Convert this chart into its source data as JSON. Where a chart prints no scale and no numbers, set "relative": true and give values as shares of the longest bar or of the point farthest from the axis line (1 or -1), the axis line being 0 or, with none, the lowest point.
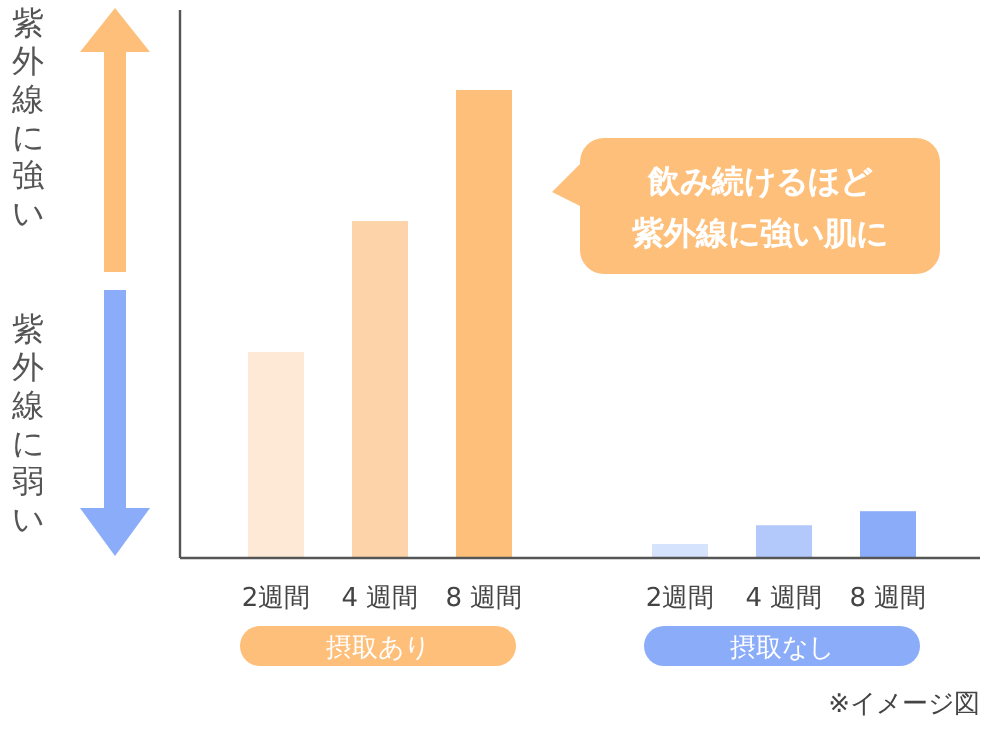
{
  "chart_data": {
    "type": "bar",
    "relative": true,
    "categories": [
      "2週間",
      "4 週間",
      "8 週間",
      "2週間",
      "4 週間",
      "8 週間"
    ],
    "values": [
      0.44,
      0.72,
      1,
      0.03,
      0.07,
      0.1
    ],
    "colors": [
      "#fde9d6",
      "#fdd4aa",
      "#fdbf7a",
      "#d6e3fc",
      "#b3c9fb",
      "#8aacf9"
    ],
    "annotations": [
      "紫外線に強い",
      "紫外線に弱い",
      "飲み続けるほど紫外線に強い肌に",
      "摂取あり",
      "摂取なし",
      "※イメージ図"
    ]
  }
}
